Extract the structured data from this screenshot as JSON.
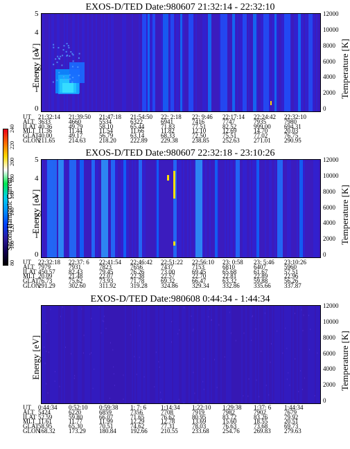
{
  "panels": [
    {
      "title": "EXOS-D/TED   Date:980607  21:32:14 - 22:32:10",
      "ylabel": "Energy [eV]",
      "y2label": "Temperature [K]",
      "yticks": [
        "5",
        "4",
        "3",
        "2",
        "1",
        "0"
      ],
      "y2ticks": [
        "12000",
        "10000",
        "8000",
        "6000",
        "4000",
        "2000",
        "0"
      ],
      "orbit": {
        "UT": [
          "21:32:14",
          "21:39:50",
          "21:47:18",
          "21:54:50",
          "22: 2:18",
          "22: 9:46",
          "22:17:14",
          "22:24:42",
          "22:32:10"
        ],
        "ALT": [
          "3633",
          "4660",
          "5534",
          "6322",
          "6941",
          "7416",
          "7747",
          "7935",
          "7980"
        ],
        "ILAT": [
          "40.36",
          "49.79",
          "58.10",
          "65.44",
          "71.83",
          "77.51",
          "82.52",
          "999.00",
          "694.31"
        ],
        "MLT": [
          "11.36",
          "11.44",
          "11.54",
          "11.66",
          "11.82",
          "12.10",
          "12.69",
          "14.70",
          "20.03"
        ],
        "GLAT": [
          "40.00",
          "49.17",
          "56.79",
          "63.14",
          "68.33",
          "72.50",
          "75.51",
          "77.02",
          "76.75"
        ],
        "GLON": [
          "211.65",
          "214.63",
          "218.20",
          "222.89",
          "229.38",
          "238.85",
          "252.63",
          "271.01",
          "290.95"
        ]
      }
    },
    {
      "title": "EXOS-D/TED   Date:980607  22:32:18 - 23:10:26",
      "ylabel": "Energy [eV]",
      "y2label": "Temperature [K]",
      "yticks": [
        "5",
        "4",
        "3",
        "2",
        "1",
        "0"
      ],
      "y2ticks": [
        "12000",
        "10000",
        "8000",
        "6000",
        "4000",
        "2000",
        "0"
      ],
      "orbit": {
        "UT": [
          "22:32:18",
          "22:37: 6",
          "22:41:54",
          "22:46:42",
          "22:51:22",
          "22:56:10",
          "23: 0:58",
          "23: 5:46",
          "23:10:26"
        ],
        "ALT": [
          "7979",
          "7931",
          "7823",
          "7656",
          "7437",
          "7153",
          "6810",
          "6407",
          "5960"
        ],
        "ILAT": [
          "450.57",
          "82.43",
          "79.45",
          "76.26",
          "73.00",
          "69.45",
          "65.68",
          "61.67",
          "57.51"
        ],
        "MLT": [
          "20.09",
          "21.48",
          "22.07",
          "22.38",
          "22.57",
          "22.70",
          "22.81",
          "22.89",
          "22.96"
        ],
        "GLAT": [
          "76.73",
          "75.62",
          "73.93",
          "71.78",
          "69.32",
          "66.47",
          "63.32",
          "59.88",
          "56.26"
        ],
        "GLON": [
          "291.29",
          "302.60",
          "311.92",
          "319.28",
          "324.86",
          "329.34",
          "332.86",
          "335.66",
          "337.87"
        ]
      }
    },
    {
      "title": "EXOS-D/TED   Date:980608  0:44:34 - 1:44:34",
      "ylabel": "Energy [eV]",
      "y2label": "Temperature [K]",
      "yticks": [],
      "y2ticks": [
        "12000",
        "10000",
        "8000",
        "6000",
        "4000",
        "2000",
        "0"
      ],
      "orbit": {
        "UT": [
          "0:44:34",
          "0:52:10",
          "0:59:38",
          "1: 7: 6",
          "1:14:34",
          "1:22:10",
          "1:29:38",
          "1:37: 6",
          "1:44:34"
        ],
        "ALT": [
          "5424",
          "6220",
          "6859",
          "7356",
          "7708",
          "7919",
          "7982",
          "7902",
          "7679"
        ],
        "ILAT": [
          "52.59",
          "59.80",
          "66.07",
          "71.65",
          "76.62",
          "80.95",
          "83.72",
          "83.26",
          "79.92"
        ],
        "MLT": [
          "11.61",
          "11.77",
          "11.99",
          "12.29",
          "12.78",
          "13.69",
          "15.60",
          "18.55",
          "20.51"
        ],
        "GLAT": [
          "58.95",
          "65.30",
          "70.51",
          "74.62",
          "77.31",
          "78.03",
          "76.63",
          "73.68",
          "69.73"
        ],
        "GLON": [
          "168.32",
          "173.29",
          "180.84",
          "192.66",
          "210.55",
          "233.68",
          "254.76",
          "269.83",
          "279.63"
        ]
      }
    }
  ],
  "colorbar": {
    "label": "Second Harmonic Current",
    "ticks": [
      "240",
      "220",
      "200",
      "180",
      "160",
      "140",
      "120",
      "100",
      "80"
    ],
    "colors": [
      "#e8001a",
      "#ff6a00",
      "#ffd800",
      "#ffffff",
      "#00e650",
      "#00d0e8",
      "#0090ff",
      "#0040ff",
      "#2a1aa0",
      "#100050",
      "#000000"
    ]
  },
  "chart_data": [
    {
      "type": "heatmap",
      "title": "EXOS-D/TED   Date:980607  21:32:14 - 22:32:10",
      "xlabel": "UT",
      "ylabel": "Energy [eV]",
      "y2label": "Temperature [K]",
      "ylim": [
        0,
        5
      ],
      "y2lim": [
        0,
        12000
      ],
      "x": [
        "21:32:14",
        "21:39:50",
        "21:47:18",
        "21:54:50",
        "22: 2:18",
        "22: 9:46",
        "22:17:14",
        "22:24:42",
        "22:32:10"
      ]
    },
    {
      "type": "heatmap",
      "title": "EXOS-D/TED   Date:980607  22:32:18 - 23:10:26",
      "xlabel": "UT",
      "ylabel": "Energy [eV]",
      "y2label": "Temperature [K]",
      "ylim": [
        0,
        5
      ],
      "y2lim": [
        0,
        12000
      ],
      "x": [
        "22:32:18",
        "22:37: 6",
        "22:41:54",
        "22:46:42",
        "22:51:22",
        "22:56:10",
        "23: 0:58",
        "23: 5:46",
        "23:10:26"
      ]
    },
    {
      "type": "heatmap",
      "title": "EXOS-D/TED   Date:980608  0:44:34 - 1:44:34",
      "xlabel": "UT",
      "ylabel": "Energy [eV]",
      "y2label": "Temperature [K]",
      "y2lim": [
        0,
        12000
      ],
      "x": [
        "0:44:34",
        "0:52:10",
        "0:59:38",
        "1: 7: 6",
        "1:14:34",
        "1:22:10",
        "1:29:38",
        "1:37: 6",
        "1:44:34"
      ]
    }
  ]
}
